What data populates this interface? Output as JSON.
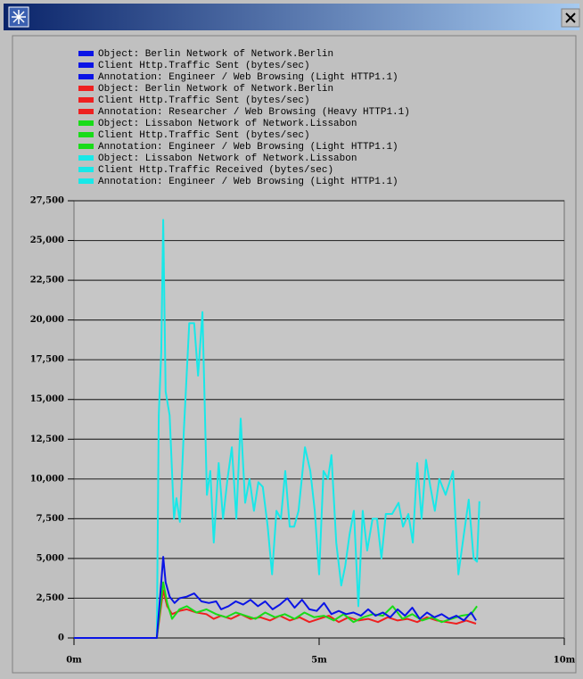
{
  "chart_data": {
    "type": "line",
    "xlim": [
      0,
      10
    ],
    "xticks": [
      {
        "value": 0,
        "label": "0m"
      },
      {
        "value": 5,
        "label": "5m"
      },
      {
        "value": 10,
        "label": "10m"
      }
    ],
    "ylim": [
      0,
      27500
    ],
    "yticks": [
      0,
      {
        "value": 2500,
        "label": "2,500"
      },
      {
        "value": 5000,
        "label": "5,000"
      },
      {
        "value": 7500,
        "label": "7,500"
      },
      {
        "value": 10000,
        "label": "10,000"
      },
      {
        "value": 12500,
        "label": "12,500"
      },
      {
        "value": 15000,
        "label": "15,000"
      },
      {
        "value": 17500,
        "label": "17,500"
      },
      {
        "value": 20000,
        "label": "20,000"
      },
      {
        "value": 22500,
        "label": "22,500"
      },
      {
        "value": 25000,
        "label": "25,000"
      },
      {
        "value": 27500,
        "label": "27,500"
      }
    ],
    "grid": true,
    "series": [
      {
        "name": [
          "Object: Berlin Network of Network.Berlin",
          "Client Http.Traffic Sent (bytes/sec)",
          "Annotation: Engineer / Web Browsing (Light HTTP1.1)"
        ],
        "color": "#0a14e6",
        "x": [
          0,
          1.69,
          1.78,
          1.82,
          1.87,
          1.95,
          2.05,
          2.15,
          2.3,
          2.45,
          2.6,
          2.75,
          2.9,
          3.0,
          3.15,
          3.3,
          3.45,
          3.6,
          3.75,
          3.9,
          4.05,
          4.2,
          4.35,
          4.5,
          4.65,
          4.8,
          4.95,
          5.1,
          5.25,
          5.4,
          5.55,
          5.7,
          5.85,
          6.0,
          6.15,
          6.3,
          6.45,
          6.6,
          6.75,
          6.9,
          7.05,
          7.2,
          7.35,
          7.5,
          7.65,
          7.8,
          7.95,
          8.1,
          8.2
        ],
        "values": [
          0,
          0,
          3500,
          5100,
          3500,
          2600,
          2200,
          2500,
          2600,
          2800,
          2300,
          2200,
          2300,
          1800,
          2000,
          2300,
          2100,
          2400,
          2000,
          2300,
          1800,
          2100,
          2500,
          1900,
          2400,
          1800,
          1700,
          2200,
          1500,
          1700,
          1500,
          1600,
          1400,
          1800,
          1400,
          1600,
          1300,
          1800,
          1400,
          1900,
          1200,
          1600,
          1300,
          1500,
          1200,
          1400,
          1100,
          1600,
          1100
        ]
      },
      {
        "name": [
          "Object: Berlin Network of Network.Berlin",
          "Client Http.Traffic Sent (bytes/sec)",
          "Annotation: Researcher / Web Browsing (Heavy HTTP1.1)"
        ],
        "color": "#ee2020",
        "x": [
          0,
          1.69,
          1.82,
          1.9,
          2.0,
          2.15,
          2.3,
          2.5,
          2.7,
          2.85,
          3.0,
          3.2,
          3.4,
          3.6,
          3.8,
          4.0,
          4.2,
          4.4,
          4.6,
          4.8,
          5.0,
          5.2,
          5.4,
          5.6,
          5.8,
          6.0,
          6.2,
          6.4,
          6.6,
          6.8,
          7.0,
          7.2,
          7.4,
          7.6,
          7.8,
          8.0,
          8.2
        ],
        "values": [
          0,
          0,
          3000,
          2000,
          1500,
          1700,
          1800,
          1600,
          1500,
          1200,
          1400,
          1200,
          1500,
          1200,
          1300,
          1100,
          1400,
          1100,
          1300,
          1000,
          1200,
          1400,
          1000,
          1300,
          1100,
          1200,
          1000,
          1300,
          1100,
          1200,
          1000,
          1300,
          1100,
          1000,
          900,
          1100,
          900
        ]
      },
      {
        "name": [
          "Object: Lissabon Network of Network.Lissabon",
          "Client Http.Traffic Sent (bytes/sec)",
          "Annotation: Engineer / Web Browsing (Light HTTP1.1)"
        ],
        "color": "#18dc18",
        "x": [
          0,
          1.69,
          1.82,
          1.9,
          2.0,
          2.15,
          2.3,
          2.5,
          2.7,
          2.9,
          3.1,
          3.3,
          3.5,
          3.7,
          3.9,
          4.1,
          4.3,
          4.5,
          4.7,
          4.9,
          5.1,
          5.3,
          5.5,
          5.7,
          5.9,
          6.1,
          6.3,
          6.5,
          6.7,
          6.9,
          7.1,
          7.3,
          7.5,
          7.7,
          7.9,
          8.1,
          8.22
        ],
        "values": [
          0,
          0,
          3500,
          2200,
          1200,
          1800,
          2000,
          1600,
          1800,
          1500,
          1300,
          1600,
          1400,
          1200,
          1600,
          1300,
          1500,
          1200,
          1600,
          1300,
          1400,
          1100,
          1500,
          1000,
          1300,
          1500,
          1400,
          2000,
          1200,
          1500,
          1100,
          1300,
          1000,
          1200,
          1400,
          1500,
          2000
        ]
      },
      {
        "name": [
          "Object: Lissabon Network of Network.Lissabon",
          "Client Http.Traffic Received (bytes/sec)",
          "Annotation: Engineer / Web Browsing (Light HTTP1.1)"
        ],
        "color": "#18e8e8",
        "x": [
          0,
          1.69,
          1.73,
          1.78,
          1.82,
          1.87,
          1.95,
          2.04,
          2.09,
          2.16,
          2.24,
          2.35,
          2.45,
          2.53,
          2.62,
          2.71,
          2.78,
          2.85,
          2.95,
          3.04,
          3.13,
          3.22,
          3.31,
          3.4,
          3.49,
          3.58,
          3.67,
          3.76,
          3.85,
          3.95,
          4.04,
          4.13,
          4.22,
          4.31,
          4.4,
          4.49,
          4.58,
          4.71,
          4.82,
          4.91,
          5.0,
          5.09,
          5.18,
          5.25,
          5.35,
          5.45,
          5.53,
          5.62,
          5.71,
          5.8,
          5.89,
          5.98,
          6.09,
          6.18,
          6.27,
          6.36,
          6.49,
          6.62,
          6.71,
          6.82,
          6.91,
          7.0,
          7.09,
          7.18,
          7.27,
          7.36,
          7.45,
          7.58,
          7.73,
          7.84,
          7.95,
          8.05,
          8.15,
          8.22,
          8.27
        ],
        "values": [
          0,
          0,
          14000,
          18000,
          26300,
          15500,
          14000,
          7500,
          8800,
          7300,
          13000,
          19800,
          19800,
          16500,
          20500,
          9000,
          10500,
          6000,
          11000,
          7500,
          10000,
          12000,
          7500,
          13800,
          8500,
          10000,
          8000,
          9800,
          9500,
          7000,
          4000,
          8000,
          7500,
          10500,
          7000,
          7000,
          8000,
          12000,
          10500,
          8000,
          4000,
          10500,
          10000,
          11500,
          6000,
          3300,
          4500,
          6500,
          8000,
          2000,
          8000,
          5500,
          7500,
          7500,
          5000,
          7800,
          7800,
          8500,
          7000,
          7800,
          6000,
          11000,
          7500,
          11200,
          9500,
          8000,
          10000,
          9000,
          10500,
          4000,
          6500,
          8700,
          5000,
          4800,
          8600
        ]
      }
    ]
  }
}
